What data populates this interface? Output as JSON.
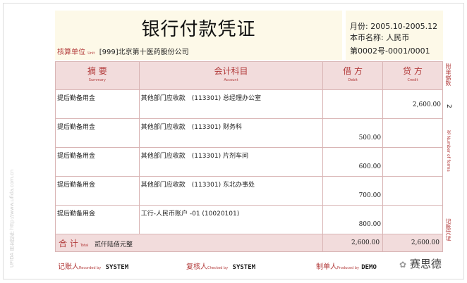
{
  "title": "银行付款凭证",
  "unit": {
    "label": "核算单位",
    "label_en": "Unit",
    "value": "[999]北京第十医药股份公司"
  },
  "info": {
    "period": "月份: 2005.10-2005.12",
    "currency": "本币名称: 人民币",
    "number": "第0002号-0001/0001"
  },
  "columns": [
    {
      "cn": "摘 要",
      "en": "Summary"
    },
    {
      "cn": "会计科目",
      "en": "Account"
    },
    {
      "cn": "借 方",
      "en": "Debit"
    },
    {
      "cn": "贷 方",
      "en": "Credit"
    }
  ],
  "rows": [
    {
      "summary": "提后勤备用金",
      "account": "其他部门应收款　(113301) 总经理办公室",
      "debit": "",
      "credit": "2,600.00"
    },
    {
      "summary": "提后勤备用金",
      "account": "其他部门应收款　(113301) 财务科",
      "debit": "500.00",
      "credit": ""
    },
    {
      "summary": "提后勤备用金",
      "account": "其他部门应收款　(113301) 片剂车间",
      "debit": "600.00",
      "credit": ""
    },
    {
      "summary": "提后勤备用金",
      "account": "其他部门应收款　(113301) 东北办事处",
      "debit": "700.00",
      "credit": ""
    },
    {
      "summary": "提后勤备用金",
      "account": "工行-人民币账户 -01 (10020101)",
      "debit": "800.00",
      "credit": ""
    }
  ],
  "total": {
    "label": "合 计",
    "label_en": "Total",
    "amount_words": "贰仟陆佰元整",
    "debit": "2,600.00",
    "credit": "2,600.00"
  },
  "side": {
    "attachments_label": "附单据数",
    "attachments": "2",
    "forms_label": "张 Number of forms",
    "voucher_label": "记账凭证"
  },
  "footer": {
    "recorded_label": "记账人",
    "recorded_en": "Recorded by",
    "recorded": "SYSTEM",
    "checked_label": "复核人",
    "checked_en": "Checked by",
    "checked": "SYSTEM",
    "produced_label": "制单人",
    "produced_en": "Produced by",
    "produced": "DEMO"
  },
  "watermark": "UFIDA 用友软件  http://www.ufida.com.cn",
  "brand": "赛思德"
}
